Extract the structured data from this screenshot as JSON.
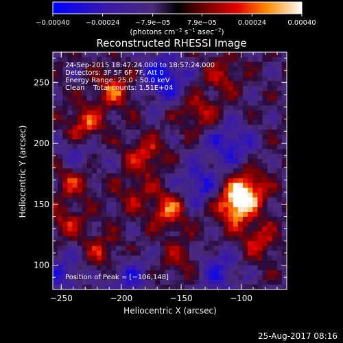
{
  "chart_data": {
    "type": "heatmap",
    "title": "Reconstructed RHESSI Image",
    "xlabel": "Heliocentric X (arcsec)",
    "ylabel": "Heliocentric Y (arcsec)",
    "xlim": [
      -257,
      -62
    ],
    "ylim": [
      80,
      275
    ],
    "x_ticks": [
      -250,
      -200,
      -150,
      -100
    ],
    "y_ticks": [
      100,
      150,
      200,
      250
    ],
    "x_tick_labels": [
      "−250",
      "−200",
      "−150",
      "−100"
    ],
    "y_tick_labels": [
      "100",
      "150",
      "200",
      "250"
    ],
    "grid": false,
    "info": {
      "time_range": "24-Sep-2015 18:47:24.000 to 18:57:24.000",
      "detectors": "Detectors: 3F 5F 6F 7F, Att 0",
      "energy_range": "Energy Range: 25.0 - 50.0 keV",
      "method_counts": "Clean    Total counts: 1.51E+04",
      "peak_position": "Position of Peak = [−106,148]"
    },
    "bright_regions": [
      {
        "x": -106,
        "y": 148,
        "level": 0.0004
      },
      {
        "x": -95,
        "y": 162,
        "level": 0.00035
      },
      {
        "x": -160,
        "y": 145,
        "level": 0.0003
      },
      {
        "x": -230,
        "y": 215,
        "level": 0.00028
      },
      {
        "x": -205,
        "y": 245,
        "level": 0.00026
      },
      {
        "x": -180,
        "y": 190,
        "level": 0.00024
      },
      {
        "x": -240,
        "y": 170,
        "level": 0.00022
      },
      {
        "x": -215,
        "y": 110,
        "level": 0.0002
      },
      {
        "x": -135,
        "y": 225,
        "level": 0.0002
      },
      {
        "x": -85,
        "y": 120,
        "level": 0.00022
      },
      {
        "x": -115,
        "y": 255,
        "level": 0.00018
      },
      {
        "x": -150,
        "y": 105,
        "level": 0.00016
      },
      {
        "x": -245,
        "y": 135,
        "level": 0.00018
      },
      {
        "x": -190,
        "y": 158,
        "level": 0.00015
      }
    ],
    "dark_regions": [
      {
        "x": -165,
        "y": 255,
        "level": -0.0003
      },
      {
        "x": -110,
        "y": 200,
        "level": -0.00024
      },
      {
        "x": -135,
        "y": 165,
        "level": -0.00022
      },
      {
        "x": -195,
        "y": 90,
        "level": -0.0002
      },
      {
        "x": -250,
        "y": 95,
        "level": -0.00018
      },
      {
        "x": -235,
        "y": 190,
        "level": -0.00016
      },
      {
        "x": -120,
        "y": 95,
        "level": -0.0002
      }
    ]
  },
  "colorbar": {
    "min": -0.0004,
    "max": 0.0004,
    "ticks": [
      -0.0004,
      -0.00024,
      -7.9e-05,
      7.9e-05,
      0.00024,
      0.0004
    ],
    "tick_labels": [
      "−0.00040",
      "−0.00024",
      "−7.9e−05",
      "7.9e−05",
      "0.00024",
      "0.00040"
    ],
    "unit_prefix": "(photons cm",
    "unit_exp1": "−2",
    "unit_mid": " s",
    "unit_exp2": "−1",
    "unit_mid2": " asec",
    "unit_exp3": "−2",
    "unit_suffix": ")",
    "colors": [
      "#0000ff",
      "#3a1aa8",
      "#4a2a7a",
      "#000000",
      "#7a0000",
      "#e10000",
      "#ff8a00",
      "#ffffff"
    ]
  },
  "footer": {
    "timestamp": "25-Aug-2017 08:16"
  }
}
